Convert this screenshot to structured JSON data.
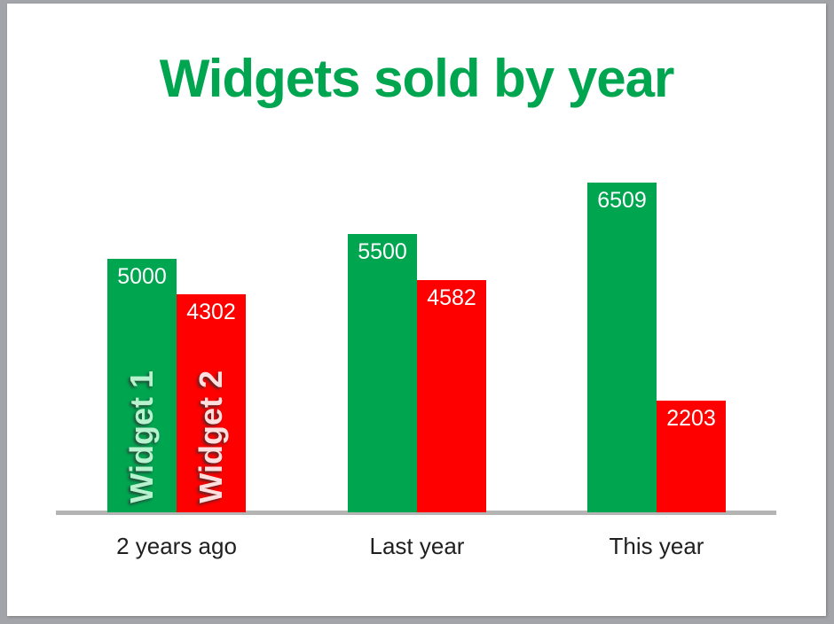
{
  "title": {
    "text": "Widgets sold by year",
    "color": "#00a550"
  },
  "chart_data": {
    "type": "bar",
    "title": "Widgets sold by year",
    "categories": [
      "2 years ago",
      "Last year",
      "This year"
    ],
    "series": [
      {
        "name": "Widget 1",
        "color": "#00a550",
        "name_label_color": "#b5f2cd",
        "values": [
          5000,
          5500,
          6509
        ]
      },
      {
        "name": "Widget 2",
        "color": "#fe0000",
        "name_label_color": "#ffdede",
        "values": [
          4302,
          4582,
          2203
        ]
      }
    ],
    "ylim": [
      0,
      7000
    ],
    "grid": false,
    "xlabel": "",
    "ylabel": "",
    "legend_position": "series names rotated 90deg inside first-category bars",
    "data_label_position": "inside-top",
    "data_label_color": "#ffffff",
    "axis_line_color": "#b4b4b4",
    "category_label_color": "#1f1f1f"
  },
  "colors": {
    "frame_background": "#a3a4a9",
    "slide_background": "#ffffff"
  }
}
